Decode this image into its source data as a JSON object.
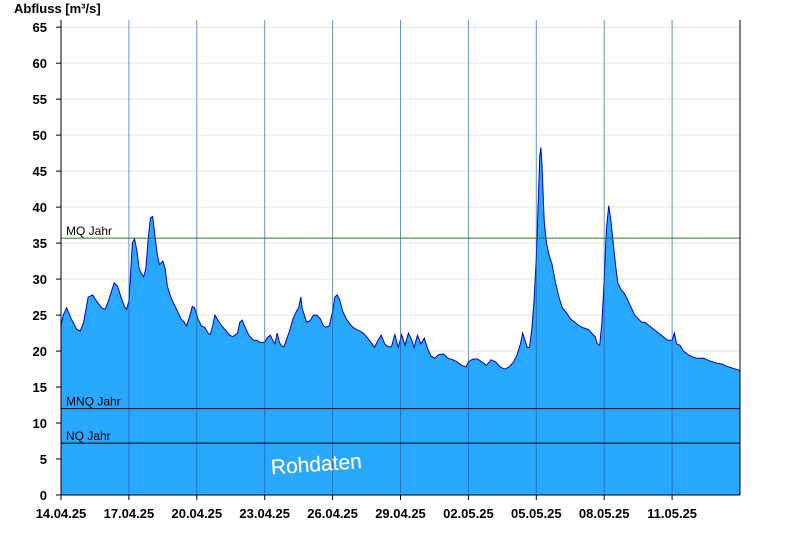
{
  "chart_data": {
    "type": "area",
    "title": "",
    "ylabel": "Abfluss [m³/s]",
    "xlabel": "",
    "ylim": [
      0,
      66
    ],
    "yticks": [
      0,
      5,
      10,
      15,
      20,
      25,
      30,
      35,
      40,
      45,
      50,
      55,
      60,
      65
    ],
    "xlim": [
      0,
      30
    ],
    "xticks": [
      {
        "x": 0,
        "label": "14.04.25"
      },
      {
        "x": 3,
        "label": "17.04.25"
      },
      {
        "x": 6,
        "label": "20.04.25"
      },
      {
        "x": 9,
        "label": "23.04.25"
      },
      {
        "x": 12,
        "label": "26.04.25"
      },
      {
        "x": 15,
        "label": "29.04.25"
      },
      {
        "x": 18,
        "label": "02.05.25"
      },
      {
        "x": 21,
        "label": "05.05.25"
      },
      {
        "x": 24,
        "label": "08.05.25"
      },
      {
        "x": 27,
        "label": "11.05.25"
      }
    ],
    "grid": "horizontal",
    "reference_lines": [
      {
        "label": "MQ Jahr",
        "value": 35.7,
        "color": "#2a7a2a"
      },
      {
        "label": "MNQ Jahr",
        "value": 12.0,
        "color": "#000000"
      },
      {
        "label": "NQ Jahr",
        "value": 7.2,
        "color": "#000000"
      }
    ],
    "fill_color": "#29a8ff",
    "line_color": "#0000cc",
    "watermark": "Rohdaten",
    "series": [
      {
        "points": [
          [
            0.0,
            23.5
          ],
          [
            0.1,
            25
          ],
          [
            0.25,
            26
          ],
          [
            0.45,
            24.5
          ],
          [
            0.7,
            23
          ],
          [
            0.85,
            22.8
          ],
          [
            1.0,
            24
          ],
          [
            1.2,
            27.5
          ],
          [
            1.4,
            27.8
          ],
          [
            1.6,
            26.8
          ],
          [
            1.8,
            26
          ],
          [
            1.95,
            25.8
          ],
          [
            2.1,
            27
          ],
          [
            2.25,
            28.5
          ],
          [
            2.35,
            29.5
          ],
          [
            2.5,
            29
          ],
          [
            2.65,
            27.5
          ],
          [
            2.8,
            26.2
          ],
          [
            2.9,
            25.8
          ],
          [
            3.0,
            27
          ],
          [
            3.1,
            32
          ],
          [
            3.15,
            35
          ],
          [
            3.25,
            35.6
          ],
          [
            3.35,
            34
          ],
          [
            3.45,
            31.5
          ],
          [
            3.55,
            30.8
          ],
          [
            3.65,
            30.3
          ],
          [
            3.75,
            31.5
          ],
          [
            3.85,
            35.5
          ],
          [
            3.95,
            38.5
          ],
          [
            4.05,
            38.7
          ],
          [
            4.15,
            36
          ],
          [
            4.25,
            33.5
          ],
          [
            4.35,
            32
          ],
          [
            4.5,
            32.5
          ],
          [
            4.6,
            31.5
          ],
          [
            4.7,
            29
          ],
          [
            4.85,
            27.5
          ],
          [
            5.0,
            26.5
          ],
          [
            5.15,
            25.5
          ],
          [
            5.3,
            24.5
          ],
          [
            5.45,
            24
          ],
          [
            5.55,
            23.5
          ],
          [
            5.7,
            25
          ],
          [
            5.8,
            26.2
          ],
          [
            5.9,
            26
          ],
          [
            6.05,
            24.5
          ],
          [
            6.2,
            23.5
          ],
          [
            6.35,
            23.3
          ],
          [
            6.5,
            22.5
          ],
          [
            6.6,
            22.3
          ],
          [
            6.7,
            23.5
          ],
          [
            6.8,
            25
          ],
          [
            6.95,
            24.2
          ],
          [
            7.1,
            23.5
          ],
          [
            7.3,
            22.8
          ],
          [
            7.45,
            22.2
          ],
          [
            7.6,
            22.0
          ],
          [
            7.8,
            22.5
          ],
          [
            7.9,
            24
          ],
          [
            8.0,
            24.3
          ],
          [
            8.15,
            23.2
          ],
          [
            8.3,
            22.2
          ],
          [
            8.5,
            21.5
          ],
          [
            8.65,
            21.5
          ],
          [
            8.8,
            21.2
          ],
          [
            9.0,
            21.2
          ],
          [
            9.1,
            21.8
          ],
          [
            9.25,
            22.2
          ],
          [
            9.35,
            21.5
          ],
          [
            9.45,
            21.0
          ],
          [
            9.55,
            22.5
          ],
          [
            9.65,
            21.2
          ],
          [
            9.75,
            20.7
          ],
          [
            9.85,
            20.6
          ],
          [
            9.95,
            21.5
          ],
          [
            10.1,
            22.8
          ],
          [
            10.25,
            24.5
          ],
          [
            10.4,
            25.5
          ],
          [
            10.5,
            26
          ],
          [
            10.6,
            27.5
          ],
          [
            10.65,
            26
          ],
          [
            10.75,
            25
          ],
          [
            10.85,
            24
          ],
          [
            11.0,
            24.2
          ],
          [
            11.15,
            25
          ],
          [
            11.3,
            25
          ],
          [
            11.45,
            24.5
          ],
          [
            11.6,
            23.5
          ],
          [
            11.7,
            23.3
          ],
          [
            11.85,
            23.5
          ],
          [
            12.0,
            25.5
          ],
          [
            12.1,
            27.5
          ],
          [
            12.2,
            27.8
          ],
          [
            12.3,
            27.2
          ],
          [
            12.45,
            25.5
          ],
          [
            12.6,
            24.5
          ],
          [
            12.75,
            23.8
          ],
          [
            12.9,
            23.3
          ],
          [
            13.05,
            23
          ],
          [
            13.2,
            22.8
          ],
          [
            13.35,
            22.5
          ],
          [
            13.5,
            22
          ],
          [
            13.7,
            21.2
          ],
          [
            13.85,
            20.5
          ],
          [
            14.0,
            21.5
          ],
          [
            14.15,
            22.2
          ],
          [
            14.3,
            21.0
          ],
          [
            14.45,
            20.6
          ],
          [
            14.6,
            20.6
          ],
          [
            14.75,
            22.3
          ],
          [
            14.9,
            20.5
          ],
          [
            15.05,
            22.3
          ],
          [
            15.2,
            20.8
          ],
          [
            15.35,
            22.5
          ],
          [
            15.5,
            21.5
          ],
          [
            15.6,
            20.5
          ],
          [
            15.75,
            22.2
          ],
          [
            15.9,
            21.0
          ],
          [
            16.05,
            21.8
          ],
          [
            16.2,
            20.3
          ],
          [
            16.35,
            19.3
          ],
          [
            16.5,
            19.0
          ],
          [
            16.7,
            19.5
          ],
          [
            16.9,
            19.6
          ],
          [
            17.1,
            19.0
          ],
          [
            17.3,
            18.8
          ],
          [
            17.5,
            18.5
          ],
          [
            17.7,
            18.0
          ],
          [
            17.9,
            17.8
          ],
          [
            18.0,
            18.5
          ],
          [
            18.2,
            18.9
          ],
          [
            18.4,
            18.9
          ],
          [
            18.6,
            18.5
          ],
          [
            18.8,
            18.0
          ],
          [
            19.0,
            18.8
          ],
          [
            19.2,
            18.5
          ],
          [
            19.4,
            17.8
          ],
          [
            19.6,
            17.5
          ],
          [
            19.8,
            17.8
          ],
          [
            20.0,
            18.5
          ],
          [
            20.15,
            19.5
          ],
          [
            20.3,
            21.0
          ],
          [
            20.4,
            22.5
          ],
          [
            20.5,
            21.5
          ],
          [
            20.6,
            20.5
          ],
          [
            20.7,
            20.5
          ],
          [
            20.8,
            23
          ],
          [
            20.9,
            27
          ],
          [
            21.0,
            33
          ],
          [
            21.1,
            42
          ],
          [
            21.15,
            47
          ],
          [
            21.2,
            48.3
          ],
          [
            21.25,
            46
          ],
          [
            21.35,
            38
          ],
          [
            21.45,
            35
          ],
          [
            21.55,
            33.5
          ],
          [
            21.7,
            32
          ],
          [
            21.85,
            29.5
          ],
          [
            22.0,
            27.5
          ],
          [
            22.15,
            26
          ],
          [
            22.3,
            25.5
          ],
          [
            22.5,
            24.5
          ],
          [
            22.7,
            24
          ],
          [
            22.9,
            23.5
          ],
          [
            23.1,
            23.2
          ],
          [
            23.3,
            23
          ],
          [
            23.5,
            22.3
          ],
          [
            23.6,
            22
          ],
          [
            23.7,
            21
          ],
          [
            23.8,
            20.8
          ],
          [
            23.9,
            24
          ],
          [
            24.0,
            30
          ],
          [
            24.1,
            37
          ],
          [
            24.2,
            40.2
          ],
          [
            24.3,
            38
          ],
          [
            24.4,
            35
          ],
          [
            24.5,
            32
          ],
          [
            24.6,
            29.5
          ],
          [
            24.75,
            28.5
          ],
          [
            24.9,
            28
          ],
          [
            25.05,
            27
          ],
          [
            25.2,
            26
          ],
          [
            25.35,
            25
          ],
          [
            25.5,
            24.5
          ],
          [
            25.65,
            24
          ],
          [
            25.8,
            24
          ],
          [
            26.0,
            23.5
          ],
          [
            26.2,
            23
          ],
          [
            26.4,
            22.5
          ],
          [
            26.6,
            22
          ],
          [
            26.8,
            21.5
          ],
          [
            27.0,
            21.5
          ],
          [
            27.1,
            22.5
          ],
          [
            27.2,
            21.0
          ],
          [
            27.35,
            20.8
          ],
          [
            27.5,
            20
          ],
          [
            27.7,
            19.5
          ],
          [
            27.9,
            19.2
          ],
          [
            28.1,
            19.0
          ],
          [
            28.4,
            19.0
          ],
          [
            28.6,
            18.7
          ],
          [
            28.8,
            18.5
          ],
          [
            29.0,
            18.3
          ],
          [
            29.2,
            18.2
          ],
          [
            29.4,
            17.9
          ],
          [
            29.6,
            17.7
          ],
          [
            29.8,
            17.5
          ],
          [
            30.0,
            17.3
          ]
        ]
      }
    ]
  }
}
